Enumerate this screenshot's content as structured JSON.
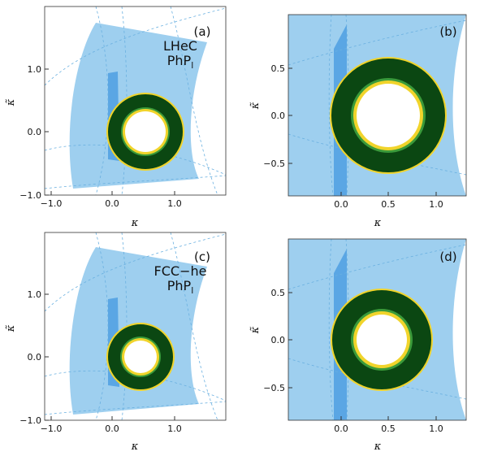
{
  "figure": {
    "background": "#ffffff",
    "colors": {
      "allowed_region": "#9ecfef",
      "dark_band": "#5aa6e4",
      "dashed_lines": "#6ab0e0",
      "ring_outer_fill": "#0b4712",
      "ring_green_edge": "#3a9a3a",
      "ring_yellow_edge": "#f1d42b"
    }
  },
  "chart_data": [
    {
      "type": "region-plot",
      "panel": "(a)",
      "annotation": [
        "LHeC",
        "PhP",
        "l"
      ],
      "xlabel": "κ",
      "ylabel": "κ̃",
      "xlim": [
        -1.2,
        1.75
      ],
      "ylim": [
        -1.0,
        1.8
      ],
      "xticks": [
        -1.0,
        0.0,
        1.0
      ],
      "xtick_labels": [
        "−1.0",
        "0.0",
        "1.0"
      ],
      "yticks": [
        -1.0,
        0.0,
        1.0
      ],
      "ytick_labels": [
        "−1.0",
        "0.0",
        "1.0"
      ],
      "grid": false,
      "ring": {
        "center": [
          0.5,
          0.0
        ],
        "outer_radius": 0.48,
        "inner_radius": 0.28
      }
    },
    {
      "type": "region-plot",
      "panel": "(b)",
      "xlabel": "κ",
      "ylabel": "κ̃",
      "xlim": [
        -0.55,
        1.35
      ],
      "ylim": [
        -0.82,
        0.82
      ],
      "xticks": [
        0.0,
        0.5,
        1.0
      ],
      "xtick_labels": [
        "0.0",
        "0.5",
        "1.0"
      ],
      "yticks": [
        -0.5,
        0.0,
        0.5
      ],
      "ytick_labels": [
        "−0.5",
        "0.0",
        "0.5"
      ],
      "grid": false,
      "ring": {
        "center": [
          0.5,
          0.0
        ],
        "outer_radius": 0.48,
        "inner_radius": 0.28
      }
    },
    {
      "type": "region-plot",
      "panel": "(c)",
      "annotation": [
        "FCC−he",
        "PhP",
        "l"
      ],
      "xlabel": "κ",
      "ylabel": "κ̃",
      "xlim": [
        -1.2,
        1.75
      ],
      "ylim": [
        -1.0,
        1.8
      ],
      "xticks": [
        -1.0,
        0.0,
        1.0
      ],
      "xtick_labels": [
        "−1.0",
        "0.0",
        "1.0"
      ],
      "yticks": [
        -1.0,
        0.0,
        1.0
      ],
      "ytick_labels": [
        "−1.0",
        "0.0",
        "1.0"
      ],
      "grid": false,
      "ring": {
        "center": [
          0.42,
          0.0
        ],
        "outer_radius": 0.42,
        "inner_radius": 0.25
      }
    },
    {
      "type": "region-plot",
      "panel": "(d)",
      "xlabel": "κ",
      "ylabel": "κ̃",
      "xlim": [
        -0.55,
        1.35
      ],
      "ylim": [
        -0.82,
        0.82
      ],
      "xticks": [
        0.0,
        0.5,
        1.0
      ],
      "xtick_labels": [
        "0.0",
        "0.5",
        "1.0"
      ],
      "yticks": [
        -0.5,
        0.0,
        0.5
      ],
      "ytick_labels": [
        "−0.5",
        "0.0",
        "0.5"
      ],
      "grid": false,
      "ring": {
        "center": [
          0.42,
          0.0
        ],
        "outer_radius": 0.42,
        "inner_radius": 0.25
      }
    }
  ]
}
